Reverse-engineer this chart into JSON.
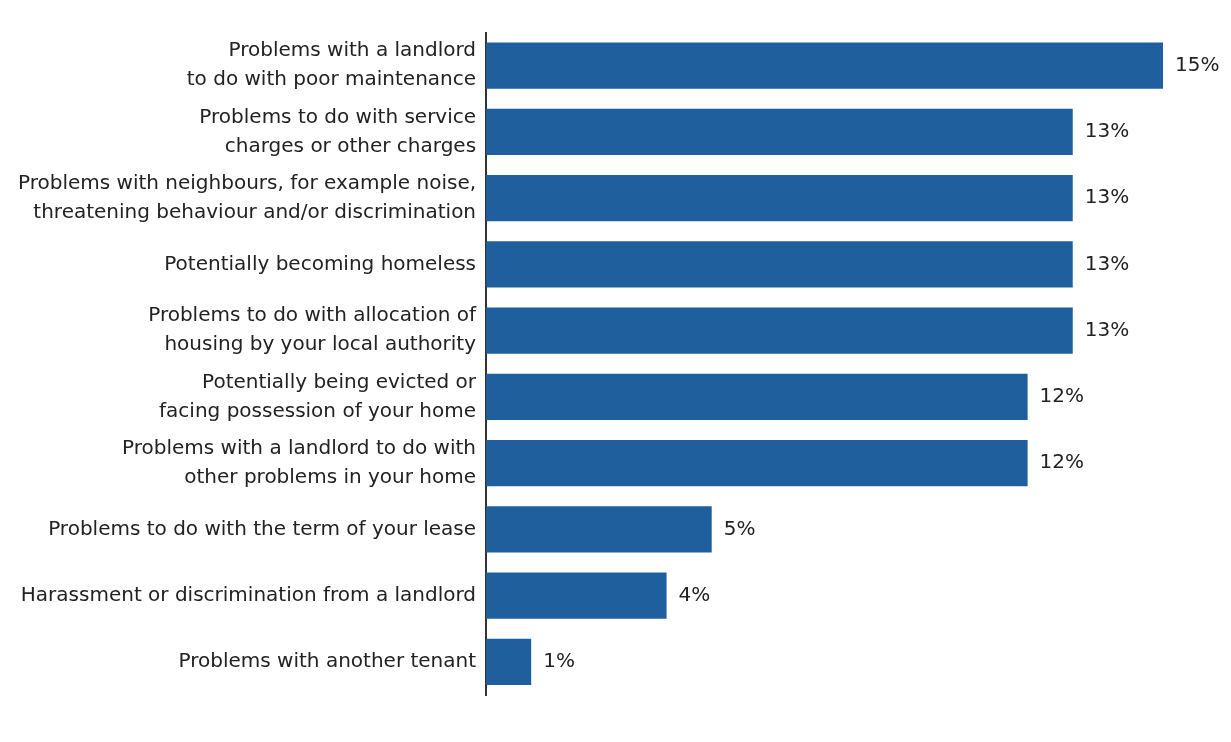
{
  "chart_data": {
    "type": "bar",
    "orientation": "horizontal",
    "categories": [
      "Problems with a landlord\nto do with poor maintenance",
      "Problems to do with service\ncharges or other charges",
      "Problems with neighbours, for example noise,\nthreatening behaviour and/or discrimination",
      "Potentially becoming homeless",
      "Problems to do with allocation of\nhousing by your local authority",
      "Potentially being evicted or\nfacing possession of your home",
      "Problems with a landlord to do with\nother problems in your home",
      "Problems to do with the term of your lease",
      "Harassment or discrimination from a landlord",
      "Problems with another tenant"
    ],
    "values": [
      15,
      13,
      13,
      13,
      13,
      12,
      12,
      5,
      4,
      1
    ],
    "value_labels": [
      "15%",
      "13%",
      "13%",
      "13%",
      "13%",
      "12%",
      "12%",
      "5%",
      "4%",
      "1%"
    ],
    "color": "#1f5f9e"
  }
}
